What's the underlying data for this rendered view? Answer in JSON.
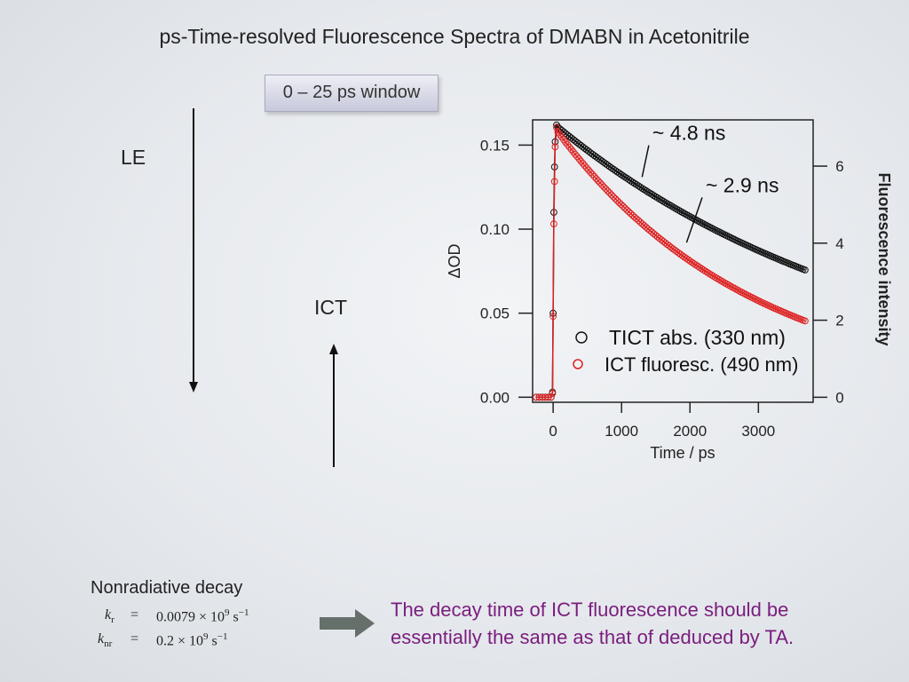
{
  "slide": {
    "title": "ps-Time-resolved Fluorescence Spectra of DMABN in Acetonitrile",
    "window_label": "0 – 25 ps window",
    "le_label": "LE",
    "ict_label": "ICT",
    "nonradiative_label": "Nonradiative decay",
    "equations": {
      "kr_symbol": "k",
      "kr_sub": "r",
      "kr_equals": "=",
      "kr_value": "0.0079 × 10",
      "kr_exp": "9",
      "kr_unit": " s",
      "kr_unit_exp": "−1",
      "knr_symbol": "k",
      "knr_sub": "nr",
      "knr_equals": "=",
      "knr_value": "0.2 × 10",
      "knr_exp": "9",
      "knr_unit": " s",
      "knr_unit_exp": "−1"
    },
    "conclusion_line1": "The decay time of ICT fluorescence should be",
    "conclusion_line2": "essentially the same as that of deduced by TA.",
    "arrow_icon": "right-arrow-icon",
    "colors": {
      "conclusion_text": "#7a1d7e",
      "arrow": "#66706a"
    }
  },
  "chart_data": {
    "type": "scatter",
    "xlabel": "Time / ps",
    "ylabel": "ΔOD",
    "y2label": "Fluorescence intensity",
    "xlim": [
      -300,
      3800
    ],
    "ylim": [
      -0.003,
      0.165
    ],
    "y2lim": [
      -0.13,
      7.2
    ],
    "xticks": [
      0,
      1000,
      2000,
      3000
    ],
    "yticks": [
      0.0,
      0.05,
      0.1,
      0.15
    ],
    "ytick_labels": [
      "0.00",
      "0.05",
      "0.10",
      "0.15"
    ],
    "y2ticks": [
      0,
      2,
      4,
      6
    ],
    "annotations": [
      {
        "text": "~ 4.8 ns",
        "x": 1450,
        "y": 0.153,
        "arrow_to_x": 1300,
        "arrow_to_y": 0.131
      },
      {
        "text": "~ 2.9 ns",
        "x": 2230,
        "y": 0.122,
        "arrow_to_x": 1950,
        "arrow_to_y": 0.092
      }
    ],
    "legend": {
      "placement": "bottom-right",
      "entries": [
        "TICT abs. (330 nm)",
        "ICT fluoresc. (490 nm)"
      ]
    },
    "series": [
      {
        "name": "TICT abs. (330 nm)",
        "axis": "left",
        "color": "#111111",
        "marker": "open-circle",
        "fit_line": true,
        "baseline": 0.0,
        "amplitude": 0.163,
        "tau_ps": 4800,
        "x_start": -250,
        "x_end": 3700,
        "rise_points": [
          [
            -30,
            0.0
          ],
          [
            -10,
            0.003
          ],
          [
            0,
            0.05
          ],
          [
            10,
            0.11
          ],
          [
            20,
            0.137
          ],
          [
            30,
            0.152
          ],
          [
            50,
            0.162
          ]
        ]
      },
      {
        "name": "ICT fluoresc. (490 nm)",
        "axis": "right",
        "color": "#dd2222",
        "marker": "open-circle",
        "fit_line": true,
        "baseline": 0.0,
        "amplitude": 7.05,
        "tau_ps": 2900,
        "x_start": -250,
        "x_end": 3700,
        "rise_points": [
          [
            -30,
            0.0
          ],
          [
            -10,
            0.1
          ],
          [
            0,
            2.1
          ],
          [
            10,
            4.5
          ],
          [
            20,
            5.6
          ],
          [
            30,
            6.5
          ],
          [
            50,
            7.0
          ]
        ]
      }
    ]
  }
}
